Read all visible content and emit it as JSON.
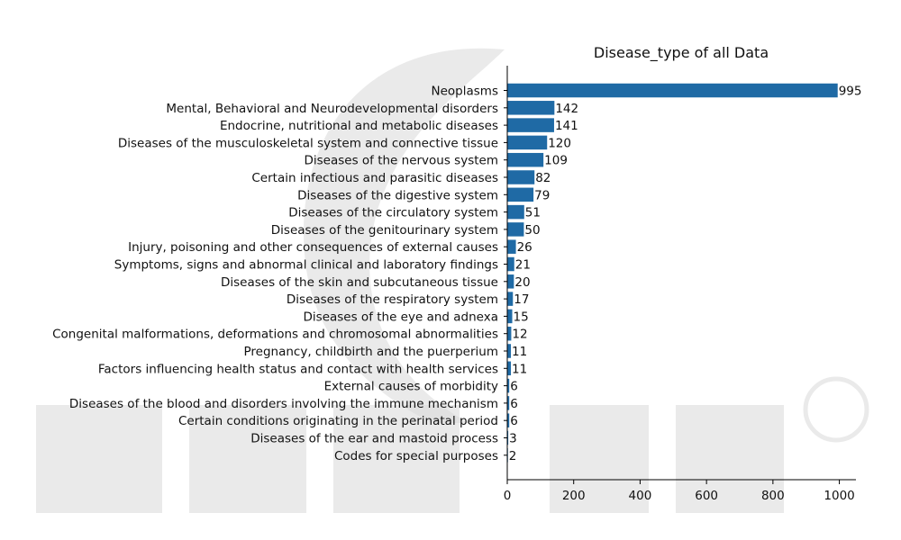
{
  "chart_data": {
    "type": "bar",
    "orientation": "horizontal",
    "title": "Disease_type of all Data",
    "xlabel": "",
    "ylabel": "",
    "xlim": [
      0,
      1050
    ],
    "xticks": [
      0,
      200,
      400,
      600,
      800,
      1000
    ],
    "grid": false,
    "bar_color": "#1f6aa5",
    "categories": [
      "Neoplasms",
      "Mental, Behavioral and Neurodevelopmental disorders",
      "Endocrine, nutritional and metabolic diseases",
      "Diseases of the musculoskeletal system and connective tissue",
      "Diseases of the nervous system",
      "Certain infectious and parasitic diseases",
      "Diseases of the digestive system",
      "Diseases of the circulatory system",
      "Diseases of the genitourinary system",
      "Injury, poisoning and other consequences of external causes",
      "Symptoms, signs and abnormal clinical and laboratory findings",
      "Diseases of the skin and subcutaneous tissue",
      "Diseases of the respiratory system",
      "Diseases of the eye and adnexa",
      "Congenital malformations, deformations and chromosomal abnormalities",
      "Pregnancy, childbirth and the puerperium",
      "Factors influencing health status and contact with health services",
      "External causes of morbidity",
      "Diseases of the blood and disorders involving the immune mechanism",
      "Certain conditions originating in the perinatal period",
      "Diseases of the ear and mastoid process",
      "Codes for special purposes"
    ],
    "values": [
      995,
      142,
      141,
      120,
      109,
      82,
      79,
      51,
      50,
      26,
      21,
      20,
      17,
      15,
      12,
      11,
      11,
      6,
      6,
      6,
      3,
      2
    ]
  }
}
